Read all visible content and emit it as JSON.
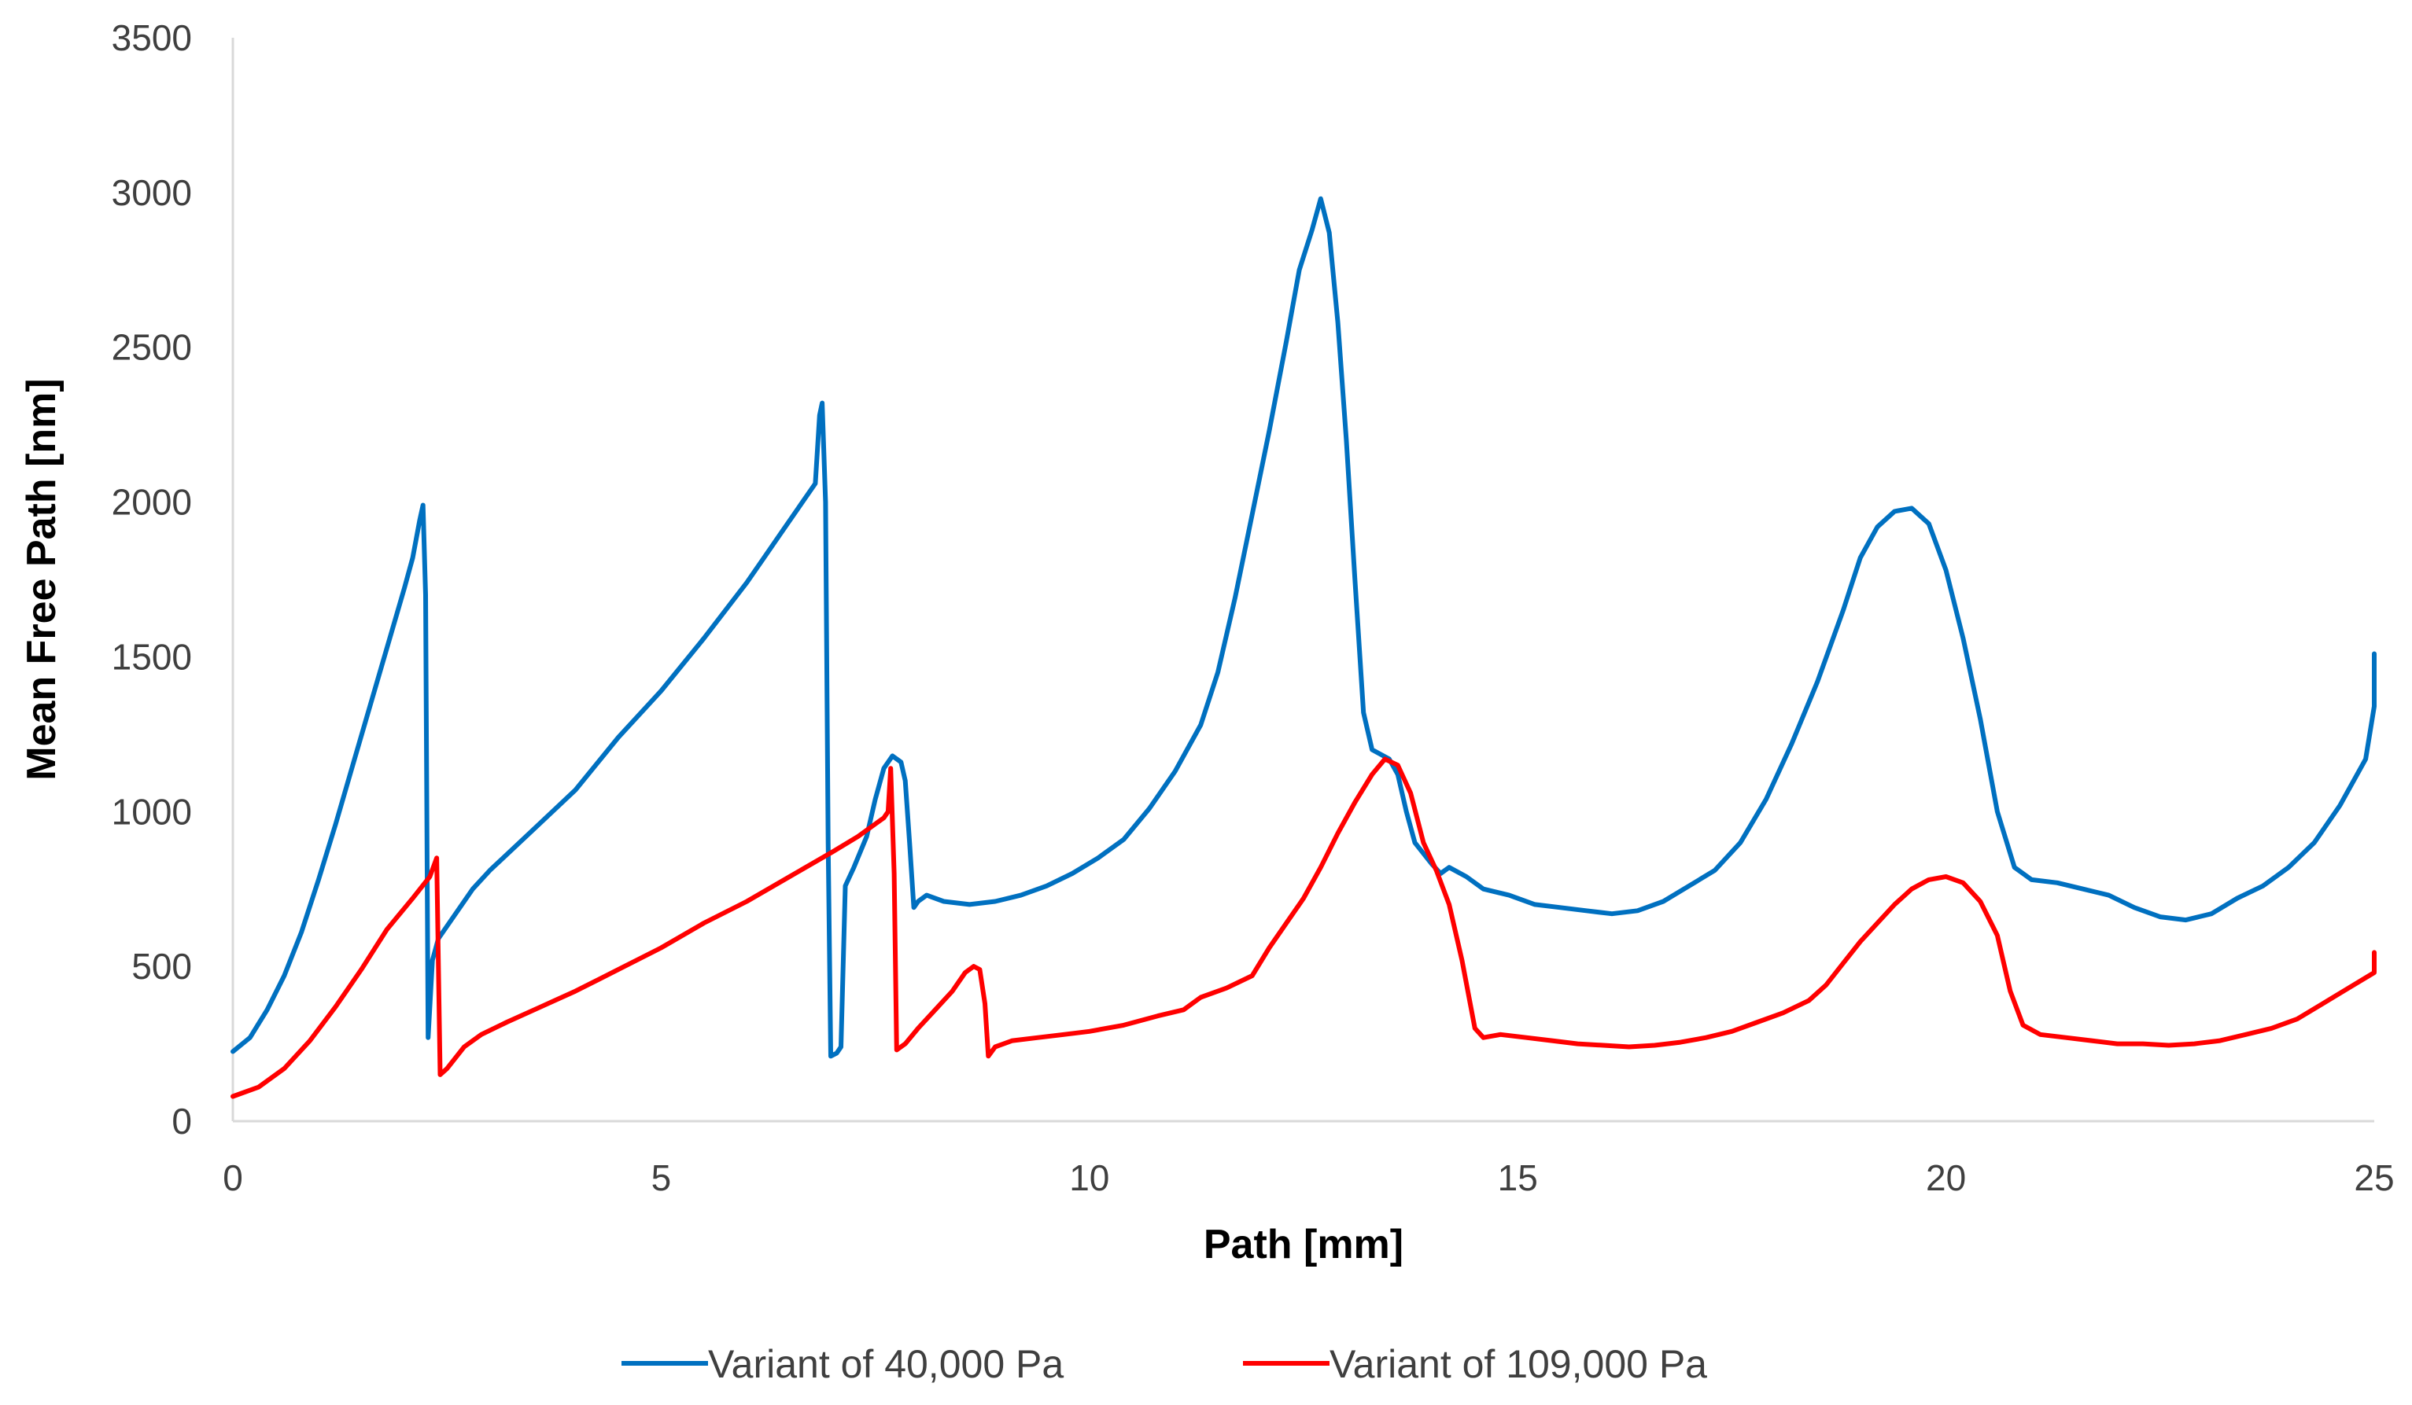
{
  "chart_data": {
    "type": "line",
    "title": "",
    "xlabel": "Path [mm]",
    "ylabel": "Mean Free Path [nm]",
    "xlim": [
      0,
      25
    ],
    "ylim": [
      0,
      3500
    ],
    "x_ticks": [
      0,
      5,
      10,
      15,
      20,
      25
    ],
    "y_ticks": [
      0,
      500,
      1000,
      1500,
      2000,
      2500,
      3000,
      3500
    ],
    "grid": false,
    "legend_position": "bottom",
    "series": [
      {
        "name": "Variant of 40,000 Pa",
        "color": "#0070C0",
        "points": [
          [
            0.0,
            225
          ],
          [
            0.2,
            270
          ],
          [
            0.4,
            360
          ],
          [
            0.6,
            470
          ],
          [
            0.8,
            610
          ],
          [
            1.0,
            780
          ],
          [
            1.2,
            960
          ],
          [
            1.4,
            1150
          ],
          [
            1.6,
            1340
          ],
          [
            1.8,
            1530
          ],
          [
            2.0,
            1720
          ],
          [
            2.1,
            1820
          ],
          [
            2.18,
            1940
          ],
          [
            2.22,
            1990
          ],
          [
            2.25,
            1700
          ],
          [
            2.28,
            270
          ],
          [
            2.33,
            520
          ],
          [
            2.4,
            590
          ],
          [
            2.6,
            670
          ],
          [
            2.8,
            750
          ],
          [
            3.0,
            810
          ],
          [
            3.5,
            940
          ],
          [
            4.0,
            1070
          ],
          [
            4.5,
            1240
          ],
          [
            5.0,
            1390
          ],
          [
            5.5,
            1560
          ],
          [
            6.0,
            1740
          ],
          [
            6.2,
            1820
          ],
          [
            6.4,
            1900
          ],
          [
            6.6,
            1980
          ],
          [
            6.8,
            2060
          ],
          [
            6.85,
            2280
          ],
          [
            6.88,
            2320
          ],
          [
            6.92,
            2000
          ],
          [
            6.95,
            900
          ],
          [
            6.98,
            210
          ],
          [
            7.05,
            220
          ],
          [
            7.1,
            240
          ],
          [
            7.15,
            760
          ],
          [
            7.25,
            820
          ],
          [
            7.4,
            920
          ],
          [
            7.5,
            1040
          ],
          [
            7.6,
            1140
          ],
          [
            7.7,
            1180
          ],
          [
            7.8,
            1160
          ],
          [
            7.85,
            1100
          ],
          [
            7.9,
            900
          ],
          [
            7.95,
            690
          ],
          [
            8.0,
            710
          ],
          [
            8.1,
            730
          ],
          [
            8.3,
            710
          ],
          [
            8.6,
            700
          ],
          [
            8.9,
            710
          ],
          [
            9.2,
            730
          ],
          [
            9.5,
            760
          ],
          [
            9.8,
            800
          ],
          [
            10.1,
            850
          ],
          [
            10.4,
            910
          ],
          [
            10.7,
            1010
          ],
          [
            11.0,
            1130
          ],
          [
            11.3,
            1280
          ],
          [
            11.5,
            1450
          ],
          [
            11.7,
            1690
          ],
          [
            11.9,
            1960
          ],
          [
            12.1,
            2230
          ],
          [
            12.3,
            2520
          ],
          [
            12.45,
            2750
          ],
          [
            12.6,
            2880
          ],
          [
            12.7,
            2980
          ],
          [
            12.8,
            2870
          ],
          [
            12.9,
            2580
          ],
          [
            13.0,
            2200
          ],
          [
            13.1,
            1750
          ],
          [
            13.2,
            1320
          ],
          [
            13.3,
            1200
          ],
          [
            13.5,
            1170
          ],
          [
            13.6,
            1120
          ],
          [
            13.7,
            1000
          ],
          [
            13.8,
            900
          ],
          [
            14.0,
            830
          ],
          [
            14.1,
            800
          ],
          [
            14.2,
            820
          ],
          [
            14.4,
            790
          ],
          [
            14.6,
            750
          ],
          [
            14.9,
            730
          ],
          [
            15.2,
            700
          ],
          [
            15.5,
            690
          ],
          [
            15.8,
            680
          ],
          [
            16.1,
            670
          ],
          [
            16.4,
            680
          ],
          [
            16.7,
            710
          ],
          [
            17.0,
            760
          ],
          [
            17.3,
            810
          ],
          [
            17.6,
            900
          ],
          [
            17.9,
            1040
          ],
          [
            18.2,
            1220
          ],
          [
            18.5,
            1420
          ],
          [
            18.8,
            1650
          ],
          [
            19.0,
            1820
          ],
          [
            19.2,
            1920
          ],
          [
            19.4,
            1970
          ],
          [
            19.6,
            1980
          ],
          [
            19.8,
            1930
          ],
          [
            20.0,
            1780
          ],
          [
            20.2,
            1560
          ],
          [
            20.4,
            1300
          ],
          [
            20.6,
            1000
          ],
          [
            20.8,
            820
          ],
          [
            21.0,
            780
          ],
          [
            21.3,
            770
          ],
          [
            21.6,
            750
          ],
          [
            21.9,
            730
          ],
          [
            22.2,
            690
          ],
          [
            22.5,
            660
          ],
          [
            22.8,
            650
          ],
          [
            23.1,
            670
          ],
          [
            23.4,
            720
          ],
          [
            23.7,
            760
          ],
          [
            24.0,
            820
          ],
          [
            24.3,
            900
          ],
          [
            24.6,
            1020
          ],
          [
            24.9,
            1170
          ],
          [
            25.2,
            1340
          ],
          [
            25.6,
            1510
          ]
        ]
      },
      {
        "name": "Variant of 109,000 Pa",
        "color": "#FF0000",
        "points": [
          [
            0.0,
            80
          ],
          [
            0.3,
            110
          ],
          [
            0.6,
            170
          ],
          [
            0.9,
            260
          ],
          [
            1.2,
            370
          ],
          [
            1.5,
            490
          ],
          [
            1.8,
            620
          ],
          [
            2.1,
            720
          ],
          [
            2.3,
            790
          ],
          [
            2.38,
            850
          ],
          [
            2.42,
            150
          ],
          [
            2.5,
            170
          ],
          [
            2.7,
            240
          ],
          [
            2.9,
            280
          ],
          [
            3.2,
            320
          ],
          [
            3.6,
            370
          ],
          [
            4.0,
            420
          ],
          [
            4.5,
            490
          ],
          [
            5.0,
            560
          ],
          [
            5.5,
            640
          ],
          [
            6.0,
            710
          ],
          [
            6.5,
            790
          ],
          [
            7.0,
            870
          ],
          [
            7.3,
            920
          ],
          [
            7.5,
            960
          ],
          [
            7.6,
            980
          ],
          [
            7.65,
            1000
          ],
          [
            7.68,
            1140
          ],
          [
            7.72,
            800
          ],
          [
            7.75,
            230
          ],
          [
            7.85,
            250
          ],
          [
            8.0,
            300
          ],
          [
            8.2,
            360
          ],
          [
            8.4,
            420
          ],
          [
            8.55,
            480
          ],
          [
            8.65,
            500
          ],
          [
            8.72,
            490
          ],
          [
            8.78,
            380
          ],
          [
            8.82,
            210
          ],
          [
            8.9,
            240
          ],
          [
            9.1,
            260
          ],
          [
            9.4,
            270
          ],
          [
            9.7,
            280
          ],
          [
            10.0,
            290
          ],
          [
            10.4,
            310
          ],
          [
            10.8,
            340
          ],
          [
            11.1,
            360
          ],
          [
            11.3,
            400
          ],
          [
            11.6,
            430
          ],
          [
            11.9,
            470
          ],
          [
            12.1,
            560
          ],
          [
            12.3,
            640
          ],
          [
            12.5,
            720
          ],
          [
            12.7,
            820
          ],
          [
            12.9,
            930
          ],
          [
            13.1,
            1030
          ],
          [
            13.3,
            1120
          ],
          [
            13.45,
            1170
          ],
          [
            13.6,
            1150
          ],
          [
            13.75,
            1060
          ],
          [
            13.9,
            900
          ],
          [
            14.05,
            810
          ],
          [
            14.2,
            700
          ],
          [
            14.35,
            520
          ],
          [
            14.5,
            300
          ],
          [
            14.6,
            270
          ],
          [
            14.8,
            280
          ],
          [
            15.1,
            270
          ],
          [
            15.4,
            260
          ],
          [
            15.7,
            250
          ],
          [
            16.0,
            245
          ],
          [
            16.3,
            240
          ],
          [
            16.6,
            245
          ],
          [
            16.9,
            255
          ],
          [
            17.2,
            270
          ],
          [
            17.5,
            290
          ],
          [
            17.8,
            320
          ],
          [
            18.1,
            350
          ],
          [
            18.4,
            390
          ],
          [
            18.6,
            440
          ],
          [
            18.8,
            510
          ],
          [
            19.0,
            580
          ],
          [
            19.2,
            640
          ],
          [
            19.4,
            700
          ],
          [
            19.6,
            750
          ],
          [
            19.8,
            780
          ],
          [
            20.0,
            790
          ],
          [
            20.2,
            770
          ],
          [
            20.4,
            710
          ],
          [
            20.6,
            600
          ],
          [
            20.75,
            420
          ],
          [
            20.9,
            310
          ],
          [
            21.1,
            280
          ],
          [
            21.4,
            270
          ],
          [
            21.7,
            260
          ],
          [
            22.0,
            250
          ],
          [
            22.3,
            250
          ],
          [
            22.6,
            245
          ],
          [
            22.9,
            250
          ],
          [
            23.2,
            260
          ],
          [
            23.5,
            280
          ],
          [
            23.8,
            300
          ],
          [
            24.1,
            330
          ],
          [
            24.4,
            380
          ],
          [
            24.7,
            430
          ],
          [
            25.0,
            480
          ],
          [
            25.3,
            520
          ],
          [
            25.6,
            545
          ]
        ]
      }
    ]
  }
}
